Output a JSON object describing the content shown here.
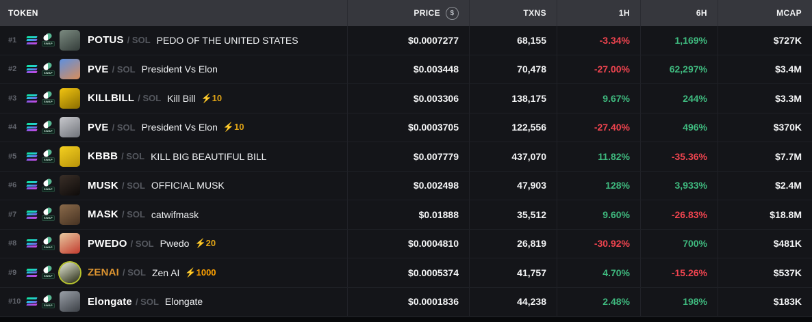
{
  "columns": {
    "token": "TOKEN",
    "price": "PRICE",
    "txns": "TXNS",
    "h1": "1H",
    "h6": "6H",
    "mcap": "MCAP"
  },
  "price_icon_glyph": "$",
  "dex_badge": "SWAP",
  "icons": {
    "chain": "solana-icon",
    "dex": "pumpswap-icon",
    "price_unit_toggle": "dollar-coin-icon"
  },
  "colors": {
    "up": "#3FBA7F",
    "down": "#F0444F",
    "boost": "#E2A516",
    "boost_high": "#FFA200",
    "zenai_symbol": "#DE9530"
  },
  "rows": [
    {
      "rank": "#1",
      "symbol": "POTUS",
      "pair": "/ SOL",
      "name": "PEDO OF THE UNITED STATES",
      "price": "$0.0007277",
      "txns": "68,155",
      "h1": {
        "text": "-3.34%",
        "dir": "down"
      },
      "h6": {
        "text": "1,169%",
        "dir": "up"
      },
      "mcap": "$727K",
      "avatar": {
        "colors": [
          "#7b8a80",
          "#343d3a"
        ]
      }
    },
    {
      "rank": "#2",
      "symbol": "PVE",
      "pair": "/ SOL",
      "name": "President Vs Elon",
      "price": "$0.003448",
      "txns": "70,478",
      "h1": {
        "text": "-27.00%",
        "dir": "down"
      },
      "h6": {
        "text": "62,297%",
        "dir": "up"
      },
      "mcap": "$3.4M",
      "avatar": {
        "colors": [
          "#5c8fe0",
          "#d98e5a"
        ]
      }
    },
    {
      "rank": "#3",
      "symbol": "KILLBILL",
      "pair": "/ SOL",
      "name": "Kill Bill",
      "boost": "⚡10",
      "price": "$0.003306",
      "txns": "138,175",
      "h1": {
        "text": "9.67%",
        "dir": "up"
      },
      "h6": {
        "text": "244%",
        "dir": "up"
      },
      "mcap": "$3.3M",
      "avatar": {
        "colors": [
          "#f2c511",
          "#8a6d00"
        ]
      }
    },
    {
      "rank": "#4",
      "symbol": "PVE",
      "pair": "/ SOL",
      "name": "President Vs Elon",
      "boost": "⚡10",
      "price": "$0.0003705",
      "txns": "122,556",
      "h1": {
        "text": "-27.40%",
        "dir": "down"
      },
      "h6": {
        "text": "496%",
        "dir": "up"
      },
      "mcap": "$370K",
      "avatar": {
        "colors": [
          "#c8c9cd",
          "#70737a"
        ]
      }
    },
    {
      "rank": "#5",
      "symbol": "KBBB",
      "pair": "/ SOL",
      "name": "KILL BIG BEAUTIFUL BILL",
      "price": "$0.007779",
      "txns": "437,070",
      "h1": {
        "text": "11.82%",
        "dir": "up"
      },
      "h6": {
        "text": "-35.36%",
        "dir": "down"
      },
      "mcap": "$7.7M",
      "avatar": {
        "colors": [
          "#f5d020",
          "#b8930a"
        ]
      }
    },
    {
      "rank": "#6",
      "symbol": "MUSK",
      "pair": "/ SOL",
      "name": "OFFICIAL MUSK",
      "price": "$0.002498",
      "txns": "47,903",
      "h1": {
        "text": "128%",
        "dir": "up"
      },
      "h6": {
        "text": "3,933%",
        "dir": "up"
      },
      "mcap": "$2.4M",
      "avatar": {
        "colors": [
          "#3a2f28",
          "#0e0b0a"
        ]
      }
    },
    {
      "rank": "#7",
      "symbol": "MASK",
      "pair": "/ SOL",
      "name": "catwifmask",
      "price": "$0.01888",
      "txns": "35,512",
      "h1": {
        "text": "9.60%",
        "dir": "up"
      },
      "h6": {
        "text": "-26.83%",
        "dir": "down"
      },
      "mcap": "$18.8M",
      "avatar": {
        "colors": [
          "#8a6a4a",
          "#463222"
        ]
      }
    },
    {
      "rank": "#8",
      "symbol": "PWEDO",
      "pair": "/ SOL",
      "name": "Pwedo",
      "boost": "⚡20",
      "price": "$0.0004810",
      "txns": "26,819",
      "h1": {
        "text": "-30.92%",
        "dir": "down"
      },
      "h6": {
        "text": "700%",
        "dir": "up"
      },
      "mcap": "$481K",
      "avatar": {
        "colors": [
          "#e8c9a0",
          "#c23b2e"
        ]
      }
    },
    {
      "rank": "#9",
      "symbol": "ZENAI",
      "pair": "/ SOL",
      "name": "Zen AI",
      "boost": "⚡1000",
      "symbol_color": "#DE9530",
      "boost_color": "#FFA200",
      "price": "$0.0005374",
      "txns": "41,757",
      "h1": {
        "text": "4.70%",
        "dir": "up"
      },
      "h6": {
        "text": "-15.26%",
        "dir": "down"
      },
      "mcap": "$537K",
      "avatar": {
        "colors": [
          "#e8ecd9",
          "#23260f"
        ],
        "shape": "circle",
        "ring": "#b9c62f"
      }
    },
    {
      "rank": "#10",
      "symbol": "Elongate",
      "pair": "/ SOL",
      "name": "Elongate",
      "price": "$0.0001836",
      "txns": "44,238",
      "h1": {
        "text": "2.48%",
        "dir": "up"
      },
      "h6": {
        "text": "198%",
        "dir": "up"
      },
      "mcap": "$183K",
      "avatar": {
        "colors": [
          "#9aa0a8",
          "#3c4046"
        ]
      }
    }
  ]
}
